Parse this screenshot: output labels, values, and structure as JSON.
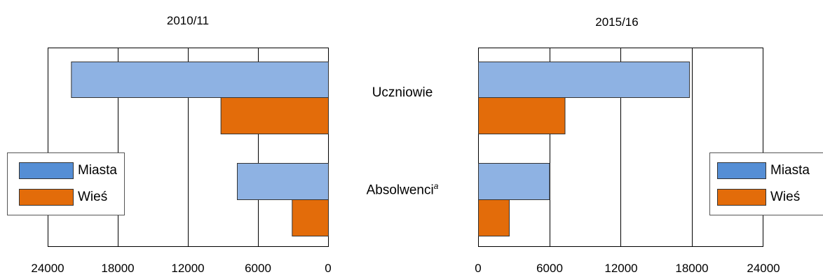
{
  "colors": {
    "miasta": "#8EB2E3",
    "wies": "#E36C0A",
    "legend_miasta": "#558ED5"
  },
  "categories": {
    "uczniowie": "Uczniowie",
    "absolwenci": "Absolwenci",
    "absolwenci_sup": "a"
  },
  "legend": {
    "miasta": "Miasta",
    "wies": "Wieś"
  },
  "chart_data": [
    {
      "type": "bar",
      "orientation": "horizontal",
      "x_direction": "reversed",
      "title": "2010/11",
      "categories": [
        "Uczniowie",
        "Absolwenci"
      ],
      "series": [
        {
          "name": "Miasta",
          "values": [
            22000,
            7800
          ]
        },
        {
          "name": "Wieś",
          "values": [
            9200,
            3100
          ]
        }
      ],
      "xlim": [
        0,
        24000
      ],
      "x_ticks": [
        "24000",
        "18000",
        "12000",
        "6000",
        "0"
      ],
      "grid": "vertical",
      "legend_position": "left"
    },
    {
      "type": "bar",
      "orientation": "horizontal",
      "title": "2015/16",
      "categories": [
        "Uczniowie",
        "Absolwenci"
      ],
      "series": [
        {
          "name": "Miasta",
          "values": [
            17800,
            6000
          ]
        },
        {
          "name": "Wieś",
          "values": [
            7300,
            2600
          ]
        }
      ],
      "xlim": [
        0,
        24000
      ],
      "x_ticks": [
        "0",
        "6000",
        "12000",
        "18000",
        "24000"
      ],
      "grid": "vertical",
      "legend_position": "right"
    }
  ]
}
